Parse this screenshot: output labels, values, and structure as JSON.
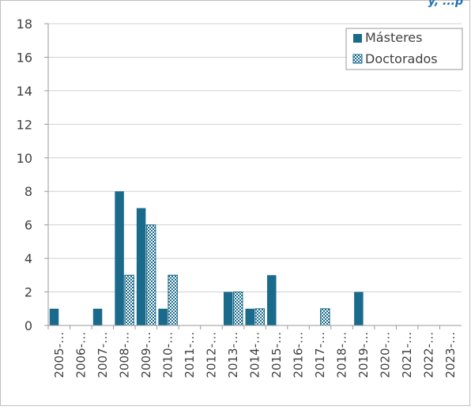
{
  "chart_data": {
    "type": "bar",
    "title_fragment": "y, ...p",
    "categories": [
      "2005-…",
      "2006-…",
      "2007-…",
      "2008-…",
      "2009-…",
      "2010-…",
      "2011-…",
      "2012-…",
      "2013-…",
      "2014-…",
      "2015-…",
      "2016-…",
      "2017-…",
      "2018-…",
      "2019-…",
      "2020-…",
      "2021-…",
      "2022-…",
      "2023-…"
    ],
    "series": [
      {
        "name": "Másteres",
        "values": [
          1,
          0,
          1,
          8,
          7,
          1,
          0,
          0,
          2,
          1,
          3,
          0,
          0,
          0,
          2,
          0,
          0,
          0,
          0
        ],
        "color": "#1a6a8c",
        "pattern": "solid"
      },
      {
        "name": "Doctorados",
        "values": [
          0,
          0,
          0,
          3,
          6,
          3,
          0,
          0,
          2,
          1,
          0,
          0,
          1,
          0,
          0,
          0,
          0,
          0,
          0
        ],
        "color": "#1a6a8c",
        "pattern": "checker"
      }
    ],
    "yticks": [
      0,
      2,
      4,
      6,
      8,
      10,
      12,
      14,
      16,
      18
    ],
    "ylim": [
      0,
      18
    ],
    "grid": true,
    "legend_position": "top-right"
  }
}
